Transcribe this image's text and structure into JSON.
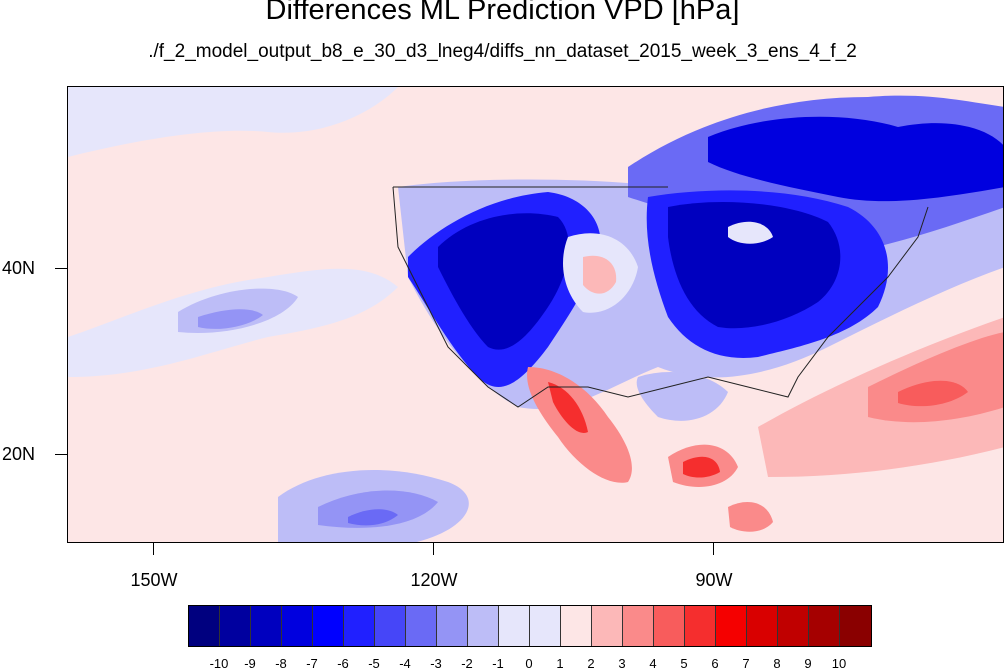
{
  "title": "Differences ML Prediction VPD [hPa]",
  "subtitle": "./f_2_model_output_b8_e_30_d3_lneg4/diffs_nn_dataset_2015_week_3_ens_4_f_2",
  "map": {
    "lat_labels": [
      "40N",
      "20N"
    ],
    "lon_labels": [
      "150W",
      "120W",
      "90W"
    ]
  },
  "colorbar": {
    "labels": [
      "-10",
      "-9",
      "-8",
      "-7",
      "-6",
      "-5",
      "-4",
      "-3",
      "-2",
      "-1",
      "0",
      "1",
      "2",
      "3",
      "4",
      "5",
      "6",
      "7",
      "8",
      "9",
      "10"
    ],
    "colors": [
      "#00007f",
      "#00009f",
      "#0000bf",
      "#0000df",
      "#0000ff",
      "#2020ff",
      "#4646f8",
      "#6a6af5",
      "#9494f5",
      "#bdbdf7",
      "#e6e6fb",
      "#fde6e6",
      "#fcb8b8",
      "#fa8a8a",
      "#f85c5c",
      "#f52e2e",
      "#f50000",
      "#d90000",
      "#c00000",
      "#a50000",
      "#8a0000"
    ]
  }
}
